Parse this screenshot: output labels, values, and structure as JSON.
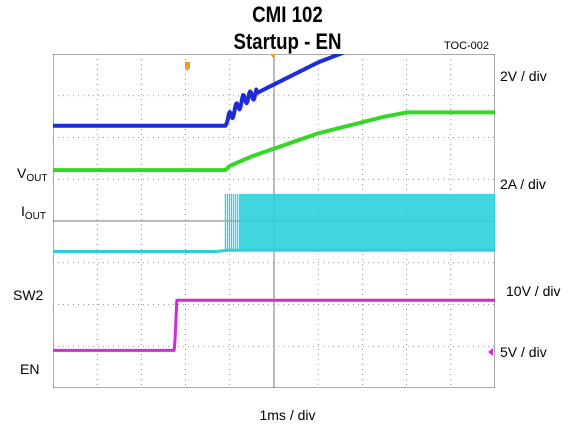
{
  "title": "CMI 102",
  "subtitle": "Startup - EN",
  "ref": "TOC-002",
  "colors": {
    "vout": "#1f2bd6",
    "iout": "#36d62a",
    "sw2": "#2bd0dc",
    "en": "#d42ad4",
    "grid": "#777777",
    "trigger": "#e8a020"
  },
  "chart_data": {
    "type": "line",
    "xlabel": "1ms / div",
    "grid": true,
    "divisions": {
      "x": 10,
      "y": 8
    },
    "x_range_div": [
      0,
      10
    ],
    "series": [
      {
        "name": "VOUT",
        "label_main": "V",
        "label_sub": "OUT",
        "scale": "2V / div",
        "x": [
          0,
          3.9,
          4.0,
          4.3,
          6.0,
          8.2,
          8.4,
          10
        ],
        "y": [
          6.28,
          6.28,
          6.5,
          6.9,
          7.8,
          8.7,
          8.78,
          8.78
        ]
      },
      {
        "name": "IOUT",
        "label_main": "I",
        "label_sub": "OUT",
        "scale": "2A / div",
        "x": [
          0,
          3.9,
          4.0,
          4.5,
          6.0,
          7.5,
          8.0,
          10
        ],
        "y": [
          5.22,
          5.22,
          5.32,
          5.55,
          6.1,
          6.5,
          6.6,
          6.6
        ]
      },
      {
        "name": "SW2",
        "label_main": "SW2",
        "scale": "10V / div",
        "x": [
          0,
          3.7,
          3.95,
          10
        ],
        "y": [
          3.27,
          3.27,
          3.3,
          3.3
        ],
        "switching_from": 4.2,
        "high": 4.65
      },
      {
        "name": "EN",
        "label_main": "EN",
        "scale": "5V / div",
        "x": [
          0,
          2.75,
          2.8,
          10
        ],
        "y": [
          0.9,
          0.9,
          2.1,
          2.1
        ]
      }
    ]
  }
}
